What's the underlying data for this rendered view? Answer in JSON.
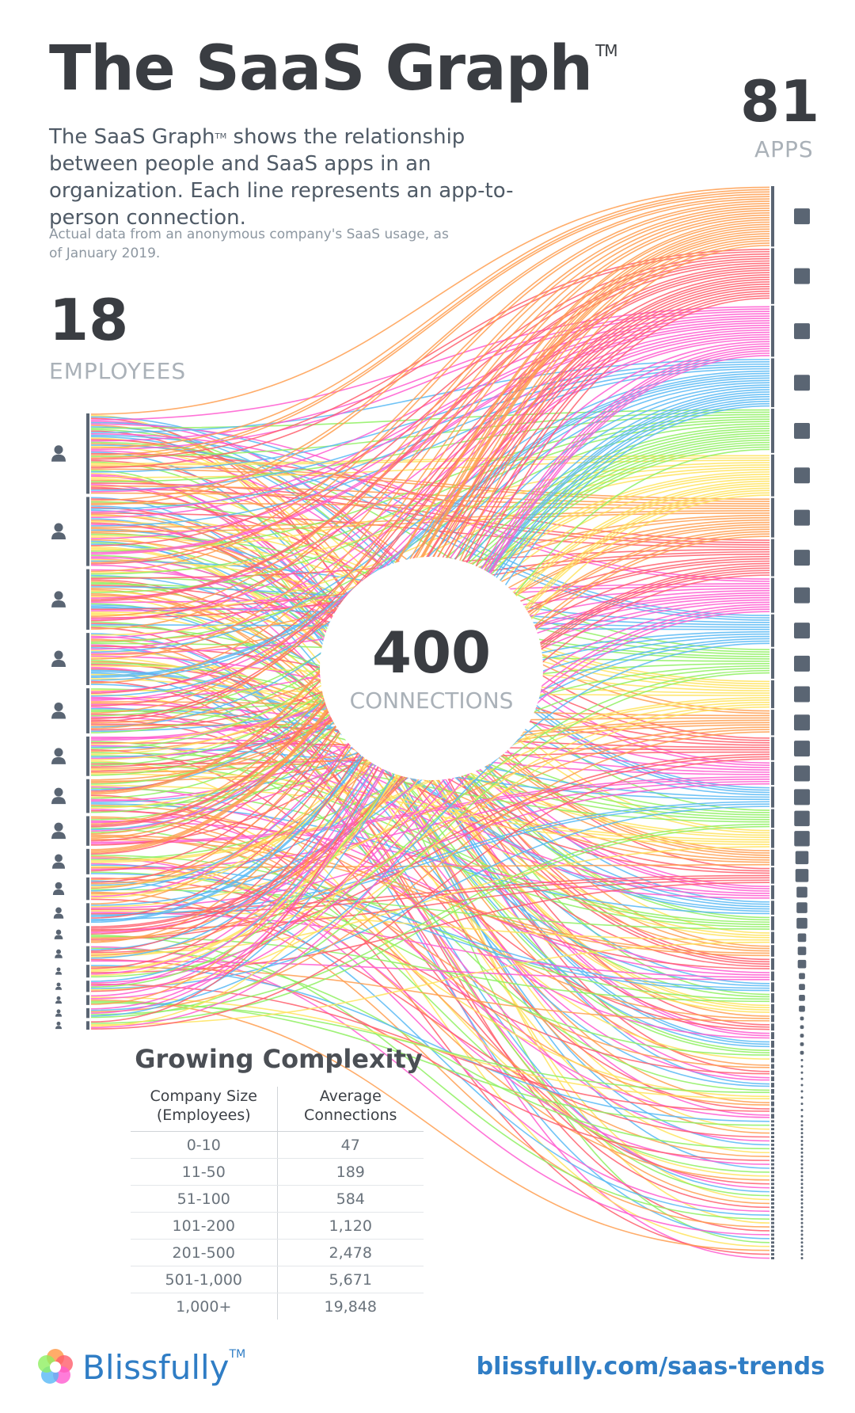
{
  "header": {
    "title": "The SaaS Graph",
    "trademark": "TM",
    "description_a": "The SaaS Graph",
    "description_b": " shows the relationship between people and SaaS apps in an organization. Each line represents an app-to-person connection.",
    "note": "Actual data from an anonymous company's SaaS usage, as of January 2019."
  },
  "stats": {
    "apps_value": "81",
    "apps_label": "APPS",
    "employees_value": "18",
    "employees_label": "EMPLOYEES",
    "connections_value": "400",
    "connections_label": "CONNECTIONS"
  },
  "complexity_table": {
    "title": "Growing Complexity",
    "col1": "Company Size (Employees)",
    "col2": "Average Connections",
    "rows": [
      {
        "size": "0-10",
        "connections": "47"
      },
      {
        "size": "11-50",
        "connections": "189"
      },
      {
        "size": "51-100",
        "connections": "584"
      },
      {
        "size": "101-200",
        "connections": "1,120"
      },
      {
        "size": "201-500",
        "connections": "2,478"
      },
      {
        "size": "501-1,000",
        "connections": "5,671"
      },
      {
        "size": "1,000+",
        "connections": "19,848"
      }
    ]
  },
  "footer": {
    "brand": "Blissfully",
    "url": "blissfully.com/saas-trends"
  },
  "colors": {
    "palette": [
      "#ff9e4f",
      "#ff5e6c",
      "#ff5bd0",
      "#57b8f5",
      "#8ef060",
      "#ffe35c"
    ],
    "brand": "#2f7dc5",
    "dark": "#3a3d42",
    "node": "#5a6573"
  },
  "icons": {
    "employee": "person-icon",
    "app": "app-square-icon",
    "logo": "blissfully-flower-logo"
  }
}
